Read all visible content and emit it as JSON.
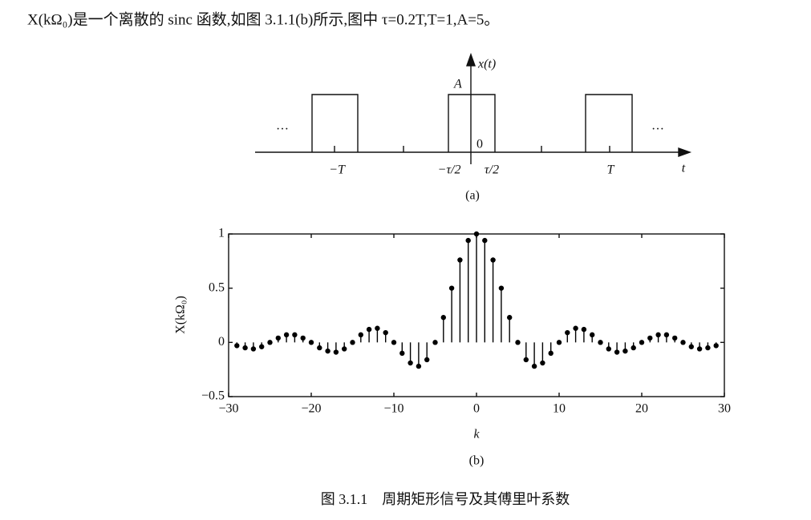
{
  "text": "X(kΩ₀)是一个离散的 sinc 函数,如图 3.1.1(b)所示,图中 τ=0.2T,T=1,A=5。",
  "figure_a": {
    "labels": {
      "y_axis": "x(t)",
      "amplitude": "A",
      "origin": "0",
      "minus_T": "−T",
      "minus_half_tau": "−τ/2",
      "half_tau": "τ/2",
      "T": "T",
      "x_axis": "t",
      "left_dots": "…",
      "right_dots": "…"
    },
    "subtitle": "(a)"
  },
  "chart_data": {
    "type": "stem",
    "subtitle": "(b)",
    "x_label": "k",
    "y_label": "X(kΩ₀)",
    "x": [
      -29,
      -28,
      -27,
      -26,
      -25,
      -24,
      -23,
      -22,
      -21,
      -20,
      -19,
      -18,
      -17,
      -16,
      -15,
      -14,
      -13,
      -12,
      -11,
      -10,
      -9,
      -8,
      -7,
      -6,
      -5,
      -4,
      -3,
      -2,
      -1,
      0,
      1,
      2,
      3,
      4,
      5,
      6,
      7,
      8,
      9,
      10,
      11,
      12,
      13,
      14,
      15,
      16,
      17,
      18,
      19,
      20,
      21,
      22,
      23,
      24,
      25,
      26,
      27,
      28,
      29
    ],
    "values": [
      -0.03,
      -0.05,
      -0.06,
      -0.04,
      0,
      0.04,
      0.07,
      0.07,
      0.04,
      0,
      -0.05,
      -0.08,
      -0.09,
      -0.06,
      0,
      0.07,
      0.12,
      0.13,
      0.09,
      0,
      -0.1,
      -0.19,
      -0.22,
      -0.16,
      0,
      0.23,
      0.5,
      0.76,
      0.94,
      1,
      0.94,
      0.76,
      0.5,
      0.23,
      0,
      -0.16,
      -0.22,
      -0.19,
      -0.1,
      0,
      0.09,
      0.13,
      0.12,
      0.07,
      0,
      -0.06,
      -0.09,
      -0.08,
      -0.05,
      0,
      0.04,
      0.07,
      0.07,
      0.04,
      0,
      -0.04,
      -0.06,
      -0.05,
      -0.03
    ],
    "color": "#000000",
    "xlim": [
      -30,
      30
    ],
    "xticks": [
      {
        "value": -30,
        "label": "−30"
      },
      {
        "value": -20,
        "label": "−20"
      },
      {
        "value": -10,
        "label": "−10"
      },
      0,
      10,
      20,
      30
    ],
    "ylim": [
      -0.5,
      1
    ],
    "yticks": [
      {
        "value": -0.5,
        "label": "−0.5"
      },
      0,
      0.5,
      1
    ],
    "grid": false
  },
  "caption": "图 3.1.1　周期矩形信号及其傅里叶系数"
}
